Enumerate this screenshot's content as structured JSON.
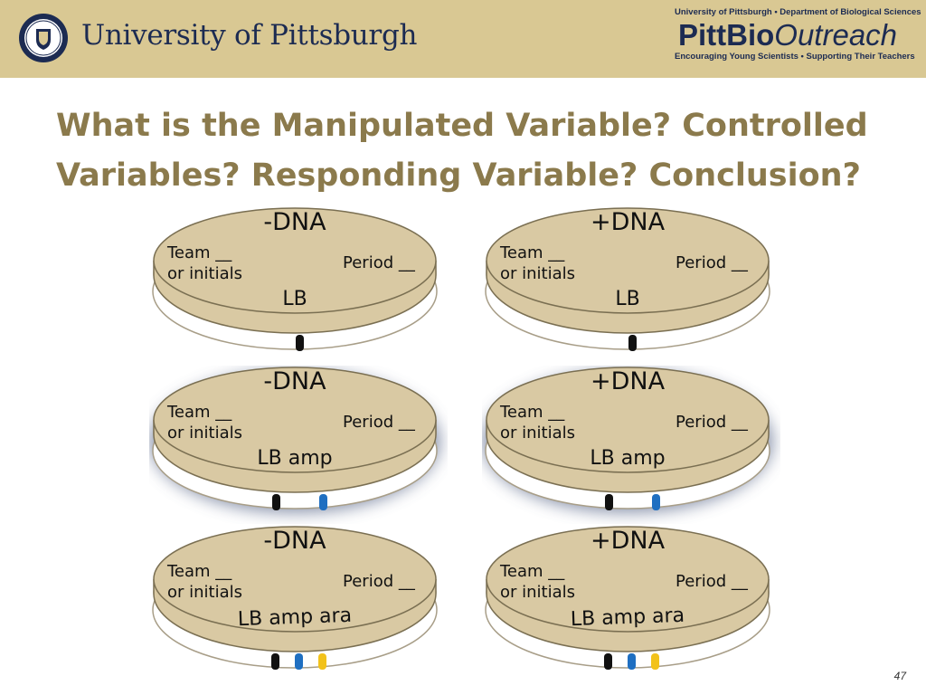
{
  "header": {
    "university_name": "University of Pittsburgh",
    "brand_top": "University of Pittsburgh • Department of Biological Sciences",
    "brand_pitt_bio": "PittBio",
    "brand_outreach": "Outreach",
    "brand_tagline": "Encouraging Young Scientists • Supporting Their Teachers"
  },
  "title": "What is the Manipulated Variable? Controlled Variables? Responding Variable? Conclusion?",
  "colors": {
    "header_bg": "#d9c893",
    "title_color": "#8b7a4c",
    "plate_fill": "#d9c9a3",
    "halo": "#5a6889",
    "marker_black": "#111111",
    "marker_blue": "#1f6fc1",
    "marker_yellow": "#f2c21b"
  },
  "plates": [
    {
      "dna": "-DNA",
      "team": "Team __",
      "initials": "or initials",
      "period": "Period __",
      "medium": "LB",
      "highlighted": false,
      "markers": [
        "black"
      ]
    },
    {
      "dna": "+DNA",
      "team": "Team __",
      "initials": "or initials",
      "period": "Period __",
      "medium": "LB",
      "highlighted": false,
      "markers": [
        "black"
      ]
    },
    {
      "dna": "-DNA",
      "team": "Team __",
      "initials": "or initials",
      "period": "Period __",
      "medium": "LB amp",
      "highlighted": true,
      "markers": [
        "black",
        "blue"
      ]
    },
    {
      "dna": "+DNA",
      "team": "Team __",
      "initials": "or initials",
      "period": "Period __",
      "medium": "LB amp",
      "highlighted": true,
      "markers": [
        "black",
        "blue"
      ]
    },
    {
      "dna": "-DNA",
      "team": "Team __",
      "initials": "or initials",
      "period": "Period __",
      "medium": "LB amp ara",
      "highlighted": false,
      "markers": [
        "black",
        "blue",
        "yellow"
      ]
    },
    {
      "dna": "+DNA",
      "team": "Team __",
      "initials": "or initials",
      "period": "Period __",
      "medium": "LB amp ara",
      "highlighted": false,
      "markers": [
        "black",
        "blue",
        "yellow"
      ]
    }
  ],
  "page_number": "47"
}
